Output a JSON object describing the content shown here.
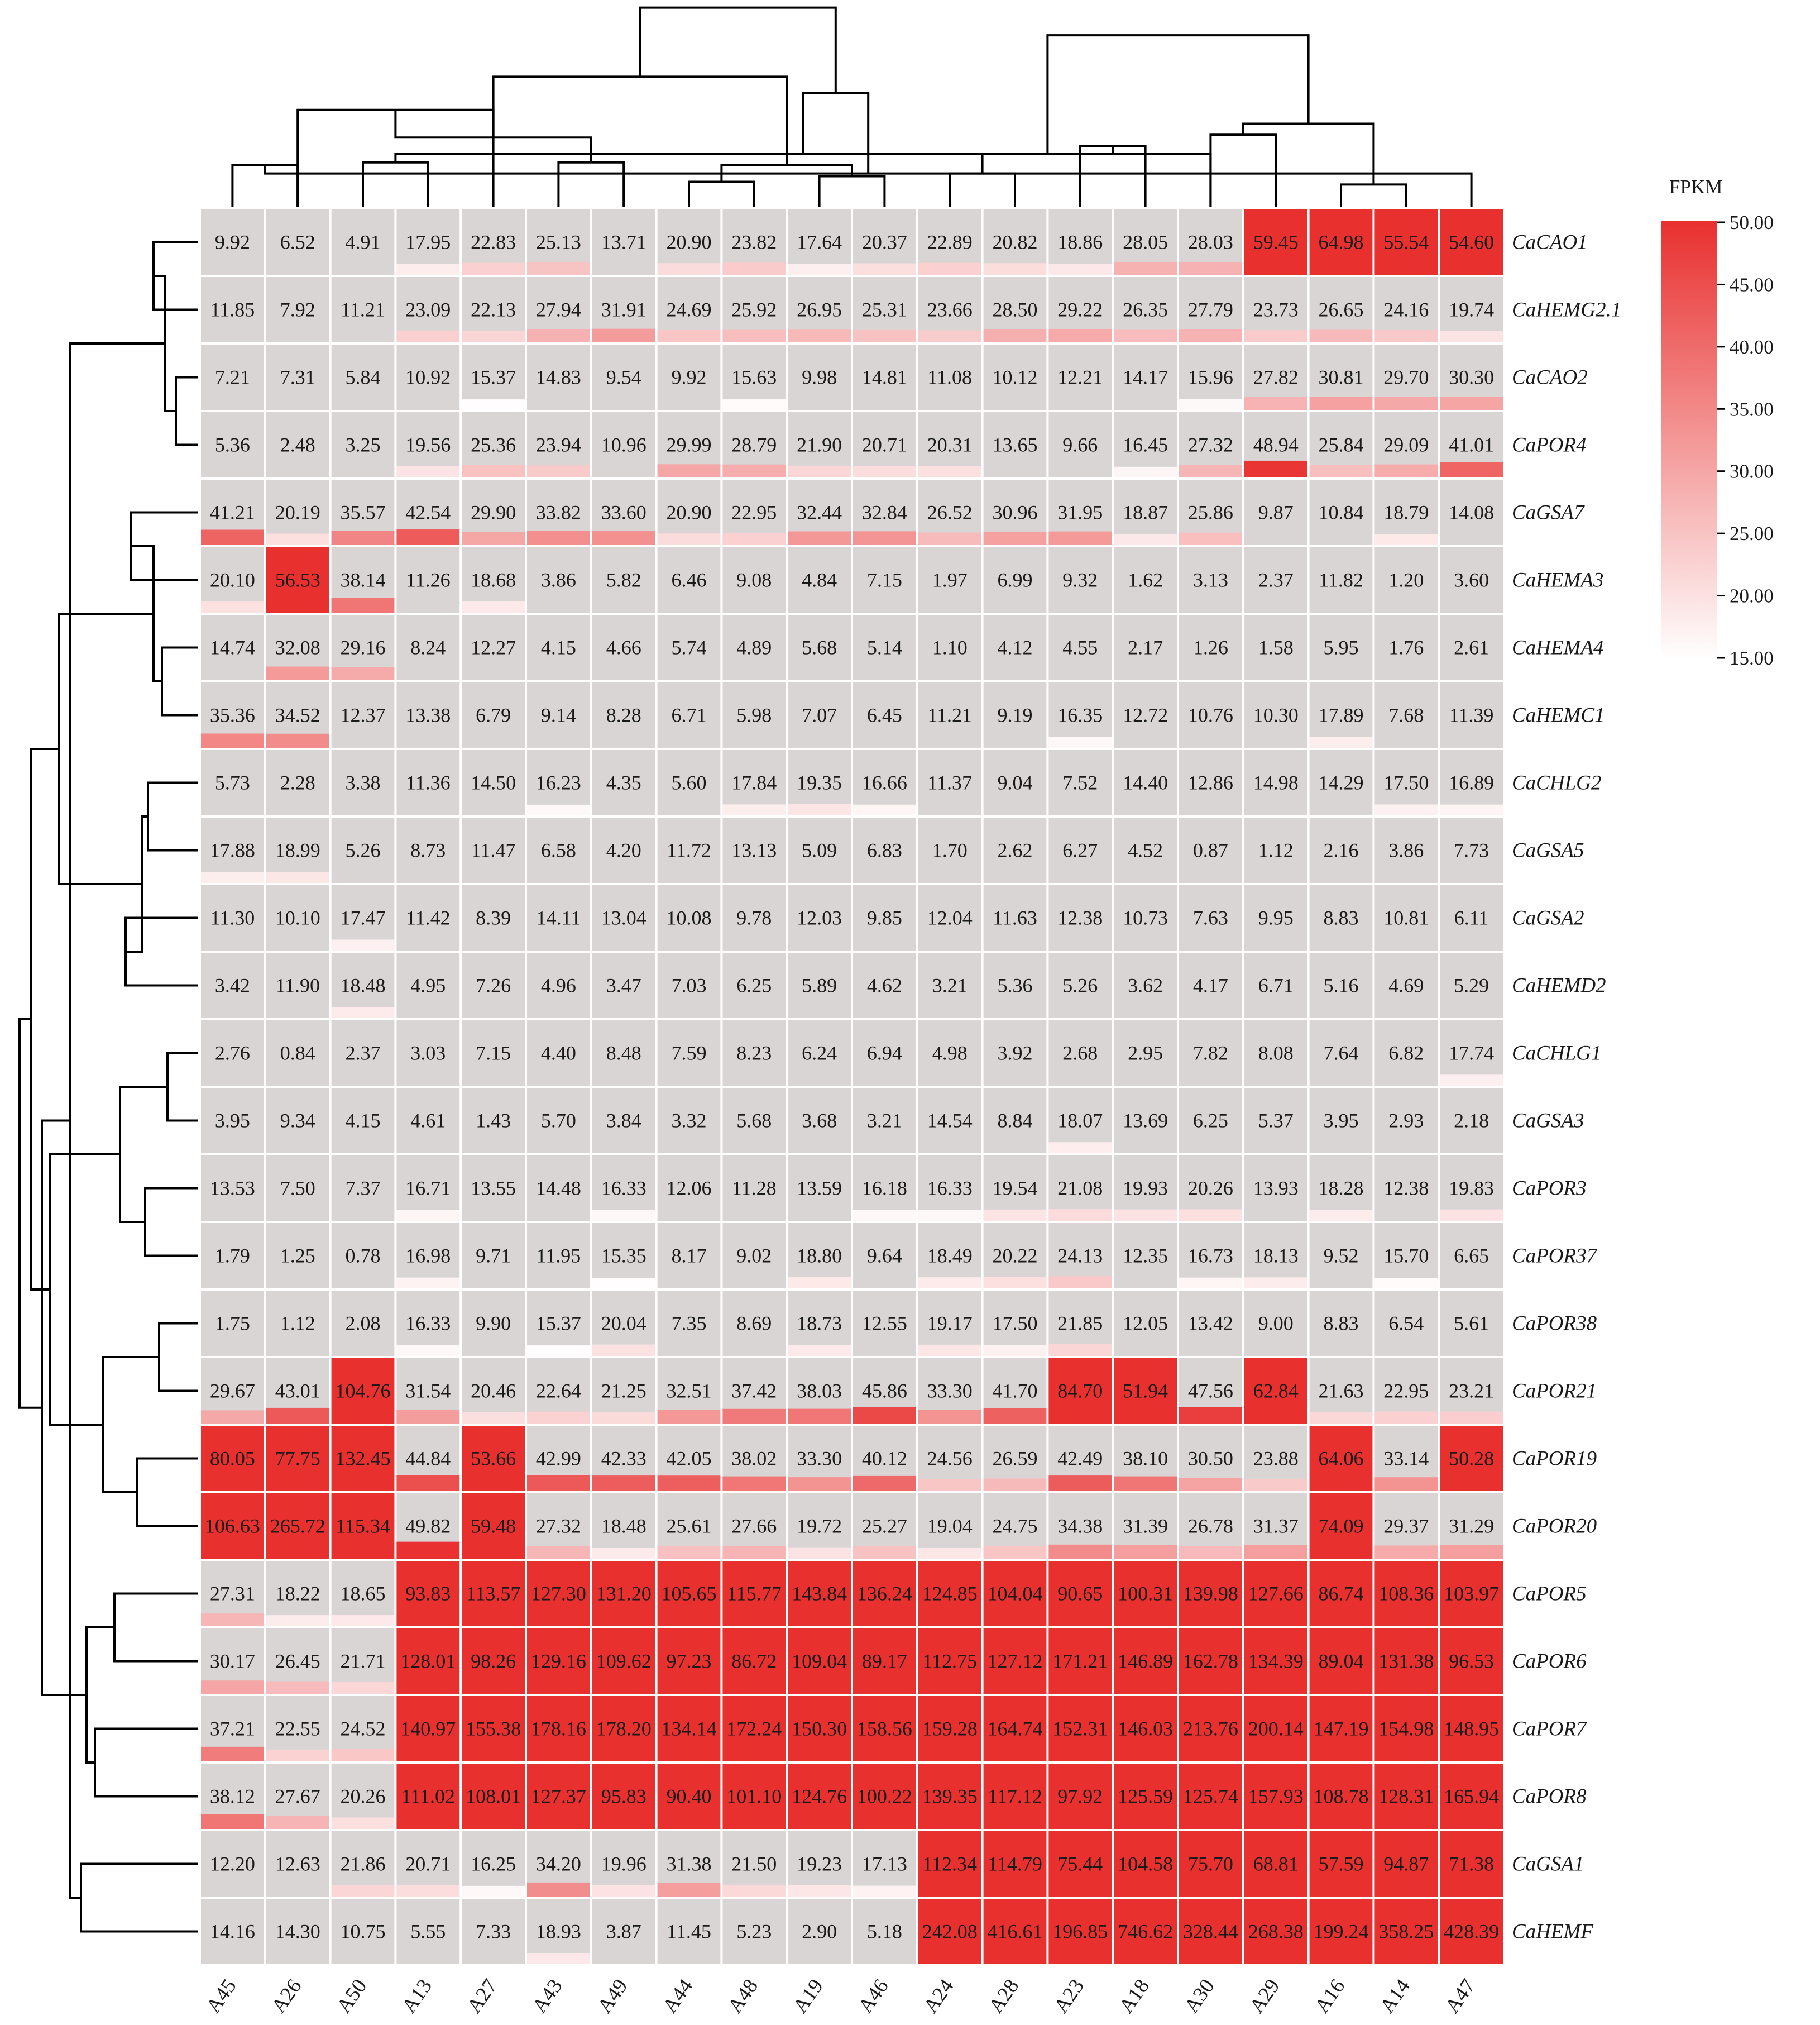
{
  "chart_data": {
    "type": "heatmap",
    "legend": {
      "title": "FPKM",
      "ticks": [
        "50.00",
        "45.00",
        "40.00",
        "35.00",
        "30.00",
        "25.00",
        "20.00",
        "15.00"
      ],
      "range": [
        15,
        50
      ],
      "color_low": "#ffffff",
      "color_high": "#e8302f",
      "cell_background": "#d9d5d5",
      "placement": "top-right"
    },
    "columns": [
      "A45",
      "A26",
      "A50",
      "A13",
      "A27",
      "A43",
      "A49",
      "A44",
      "A48",
      "A19",
      "A46",
      "A24",
      "A28",
      "A23",
      "A18",
      "A30",
      "A29",
      "A16",
      "A14",
      "A47"
    ],
    "rows": [
      "CaCAO1",
      "CaHEMG2.1",
      "CaCAO2",
      "CaPOR4",
      "CaGSA7",
      "CaHEMA3",
      "CaHEMA4",
      "CaHEMC1",
      "CaCHLG2",
      "CaGSA5",
      "CaGSA2",
      "CaHEMD2",
      "CaCHLG1",
      "CaGSA3",
      "CaPOR3",
      "CaPOR37",
      "CaPOR38",
      "CaPOR21",
      "CaPOR19",
      "CaPOR20",
      "CaPOR5",
      "CaPOR6",
      "CaPOR7",
      "CaPOR8",
      "CaGSA1",
      "CaHEMF"
    ],
    "values": [
      [
        "9.92",
        "6.52",
        "4.91",
        "17.95",
        "22.83",
        "25.13",
        "13.71",
        "20.90",
        "23.82",
        "17.64",
        "20.37",
        "22.89",
        "20.82",
        "18.86",
        "28.05",
        "28.03",
        "59.45",
        "64.98",
        "55.54",
        "54.60"
      ],
      [
        "11.85",
        "7.92",
        "11.21",
        "23.09",
        "22.13",
        "27.94",
        "31.91",
        "24.69",
        "25.92",
        "26.95",
        "25.31",
        "23.66",
        "28.50",
        "29.22",
        "26.35",
        "27.79",
        "23.73",
        "26.65",
        "24.16",
        "19.74"
      ],
      [
        "7.21",
        "7.31",
        "5.84",
        "10.92",
        "15.37",
        "14.83",
        "9.54",
        "9.92",
        "15.63",
        "9.98",
        "14.81",
        "11.08",
        "10.12",
        "12.21",
        "14.17",
        "15.96",
        "27.82",
        "30.81",
        "29.70",
        "30.30"
      ],
      [
        "5.36",
        "2.48",
        "3.25",
        "19.56",
        "25.36",
        "23.94",
        "10.96",
        "29.99",
        "28.79",
        "21.90",
        "20.71",
        "20.31",
        "13.65",
        "9.66",
        "16.45",
        "27.32",
        "48.94",
        "25.84",
        "29.09",
        "41.01"
      ],
      [
        "41.21",
        "20.19",
        "35.57",
        "42.54",
        "29.90",
        "33.82",
        "33.60",
        "20.90",
        "22.95",
        "32.44",
        "32.84",
        "26.52",
        "30.96",
        "31.95",
        "18.87",
        "25.86",
        "9.87",
        "10.84",
        "18.79",
        "14.08"
      ],
      [
        "20.10",
        "56.53",
        "38.14",
        "11.26",
        "18.68",
        "3.86",
        "5.82",
        "6.46",
        "9.08",
        "4.84",
        "7.15",
        "1.97",
        "6.99",
        "9.32",
        "1.62",
        "3.13",
        "2.37",
        "11.82",
        "1.20",
        "3.60"
      ],
      [
        "14.74",
        "32.08",
        "29.16",
        "8.24",
        "12.27",
        "4.15",
        "4.66",
        "5.74",
        "4.89",
        "5.68",
        "5.14",
        "1.10",
        "4.12",
        "4.55",
        "2.17",
        "1.26",
        "1.58",
        "5.95",
        "1.76",
        "2.61"
      ],
      [
        "35.36",
        "34.52",
        "12.37",
        "13.38",
        "6.79",
        "9.14",
        "8.28",
        "6.71",
        "5.98",
        "7.07",
        "6.45",
        "11.21",
        "9.19",
        "16.35",
        "12.72",
        "10.76",
        "10.30",
        "17.89",
        "7.68",
        "11.39"
      ],
      [
        "5.73",
        "2.28",
        "3.38",
        "11.36",
        "14.50",
        "16.23",
        "4.35",
        "5.60",
        "17.84",
        "19.35",
        "16.66",
        "11.37",
        "9.04",
        "7.52",
        "14.40",
        "12.86",
        "14.98",
        "14.29",
        "17.50",
        "16.89"
      ],
      [
        "17.88",
        "18.99",
        "5.26",
        "8.73",
        "11.47",
        "6.58",
        "4.20",
        "11.72",
        "13.13",
        "5.09",
        "6.83",
        "1.70",
        "2.62",
        "6.27",
        "4.52",
        "0.87",
        "1.12",
        "2.16",
        "3.86",
        "7.73"
      ],
      [
        "11.30",
        "10.10",
        "17.47",
        "11.42",
        "8.39",
        "14.11",
        "13.04",
        "10.08",
        "9.78",
        "12.03",
        "9.85",
        "12.04",
        "11.63",
        "12.38",
        "10.73",
        "7.63",
        "9.95",
        "8.83",
        "10.81",
        "6.11"
      ],
      [
        "3.42",
        "11.90",
        "18.48",
        "4.95",
        "7.26",
        "4.96",
        "3.47",
        "7.03",
        "6.25",
        "5.89",
        "4.62",
        "3.21",
        "5.36",
        "5.26",
        "3.62",
        "4.17",
        "6.71",
        "5.16",
        "4.69",
        "5.29"
      ],
      [
        "2.76",
        "0.84",
        "2.37",
        "3.03",
        "7.15",
        "4.40",
        "8.48",
        "7.59",
        "8.23",
        "6.24",
        "6.94",
        "4.98",
        "3.92",
        "2.68",
        "2.95",
        "7.82",
        "8.08",
        "7.64",
        "6.82",
        "17.74"
      ],
      [
        "3.95",
        "9.34",
        "4.15",
        "4.61",
        "1.43",
        "5.70",
        "3.84",
        "3.32",
        "5.68",
        "3.68",
        "3.21",
        "14.54",
        "8.84",
        "18.07",
        "13.69",
        "6.25",
        "5.37",
        "3.95",
        "2.93",
        "2.18"
      ],
      [
        "13.53",
        "7.50",
        "7.37",
        "16.71",
        "13.55",
        "14.48",
        "16.33",
        "12.06",
        "11.28",
        "13.59",
        "16.18",
        "16.33",
        "19.54",
        "21.08",
        "19.93",
        "20.26",
        "13.93",
        "18.28",
        "12.38",
        "19.83"
      ],
      [
        "1.79",
        "1.25",
        "0.78",
        "16.98",
        "9.71",
        "11.95",
        "15.35",
        "8.17",
        "9.02",
        "18.80",
        "9.64",
        "18.49",
        "20.22",
        "24.13",
        "12.35",
        "16.73",
        "18.13",
        "9.52",
        "15.70",
        "6.65"
      ],
      [
        "1.75",
        "1.12",
        "2.08",
        "16.33",
        "9.90",
        "15.37",
        "20.04",
        "7.35",
        "8.69",
        "18.73",
        "12.55",
        "19.17",
        "17.50",
        "21.85",
        "12.05",
        "13.42",
        "9.00",
        "8.83",
        "6.54",
        "5.61"
      ],
      [
        "29.67",
        "43.01",
        "104.76",
        "31.54",
        "20.46",
        "22.64",
        "21.25",
        "32.51",
        "37.42",
        "38.03",
        "45.86",
        "33.30",
        "41.70",
        "84.70",
        "51.94",
        "47.56",
        "62.84",
        "21.63",
        "22.95",
        "23.21"
      ],
      [
        "80.05",
        "77.75",
        "132.45",
        "44.84",
        "53.66",
        "42.99",
        "42.33",
        "42.05",
        "38.02",
        "33.30",
        "40.12",
        "24.56",
        "26.59",
        "42.49",
        "38.10",
        "30.50",
        "23.88",
        "64.06",
        "33.14",
        "50.28"
      ],
      [
        "106.63",
        "265.72",
        "115.34",
        "49.82",
        "59.48",
        "27.32",
        "18.48",
        "25.61",
        "27.66",
        "19.72",
        "25.27",
        "19.04",
        "24.75",
        "34.38",
        "31.39",
        "26.78",
        "31.37",
        "74.09",
        "29.37",
        "31.29"
      ],
      [
        "27.31",
        "18.22",
        "18.65",
        "93.83",
        "113.57",
        "127.30",
        "131.20",
        "105.65",
        "115.77",
        "143.84",
        "136.24",
        "124.85",
        "104.04",
        "90.65",
        "100.31",
        "139.98",
        "127.66",
        "86.74",
        "108.36",
        "103.97"
      ],
      [
        "30.17",
        "26.45",
        "21.71",
        "128.01",
        "98.26",
        "129.16",
        "109.62",
        "97.23",
        "86.72",
        "109.04",
        "89.17",
        "112.75",
        "127.12",
        "171.21",
        "146.89",
        "162.78",
        "134.39",
        "89.04",
        "131.38",
        "96.53"
      ],
      [
        "37.21",
        "22.55",
        "24.52",
        "140.97",
        "155.38",
        "178.16",
        "178.20",
        "134.14",
        "172.24",
        "150.30",
        "158.56",
        "159.28",
        "164.74",
        "152.31",
        "146.03",
        "213.76",
        "200.14",
        "147.19",
        "154.98",
        "148.95"
      ],
      [
        "38.12",
        "27.67",
        "20.26",
        "111.02",
        "108.01",
        "127.37",
        "95.83",
        "90.40",
        "101.10",
        "124.76",
        "100.22",
        "139.35",
        "117.12",
        "97.92",
        "125.59",
        "125.74",
        "157.93",
        "108.78",
        "128.31",
        "165.94"
      ],
      [
        "12.20",
        "12.63",
        "21.86",
        "20.71",
        "16.25",
        "34.20",
        "19.96",
        "31.38",
        "21.50",
        "19.23",
        "17.13",
        "112.34",
        "114.79",
        "75.44",
        "104.58",
        "75.70",
        "68.81",
        "57.59",
        "94.87",
        "71.38"
      ],
      [
        "14.16",
        "14.30",
        "10.75",
        "5.55",
        "7.33",
        "18.93",
        "3.87",
        "11.45",
        "5.23",
        "2.90",
        "5.18",
        "242.08",
        "416.61",
        "196.85",
        "746.62",
        "328.44",
        "268.38",
        "199.24",
        "358.25",
        "428.39"
      ]
    ],
    "col_dendrogram": [
      [
        0,
        1
      ],
      [
        2,
        3
      ],
      [
        1,
        4
      ],
      [
        5,
        6
      ],
      [
        7,
        8
      ],
      [
        9,
        10
      ],
      [
        11,
        12
      ],
      [
        13,
        14
      ],
      [
        15,
        16
      ],
      [
        17,
        18
      ],
      [
        19,
        20
      ],
      [
        15,
        21
      ],
      [
        22,
        23
      ],
      [
        24,
        25
      ],
      [
        26,
        27
      ],
      [
        28,
        29
      ],
      [
        30,
        31
      ],
      [
        32,
        33
      ],
      [
        34,
        35
      ],
      [
        36,
        37
      ]
    ],
    "row_dendrogram": [
      [
        0,
        1
      ],
      [
        2,
        3
      ],
      [
        4,
        5
      ],
      [
        6,
        7
      ],
      [
        8,
        9
      ],
      [
        10,
        11
      ],
      [
        12,
        13
      ],
      [
        14,
        15
      ],
      [
        16,
        17
      ],
      [
        18,
        19
      ],
      [
        20,
        21
      ],
      [
        22,
        23
      ],
      [
        24,
        25
      ],
      [
        26,
        27
      ],
      [
        28,
        29
      ],
      [
        30,
        31
      ],
      [
        32,
        33
      ],
      [
        34,
        35
      ],
      [
        36,
        37
      ],
      [
        38,
        39
      ],
      [
        40,
        41
      ],
      [
        42,
        43
      ],
      [
        44,
        45
      ],
      [
        46,
        47
      ],
      [
        48,
        49
      ]
    ]
  }
}
